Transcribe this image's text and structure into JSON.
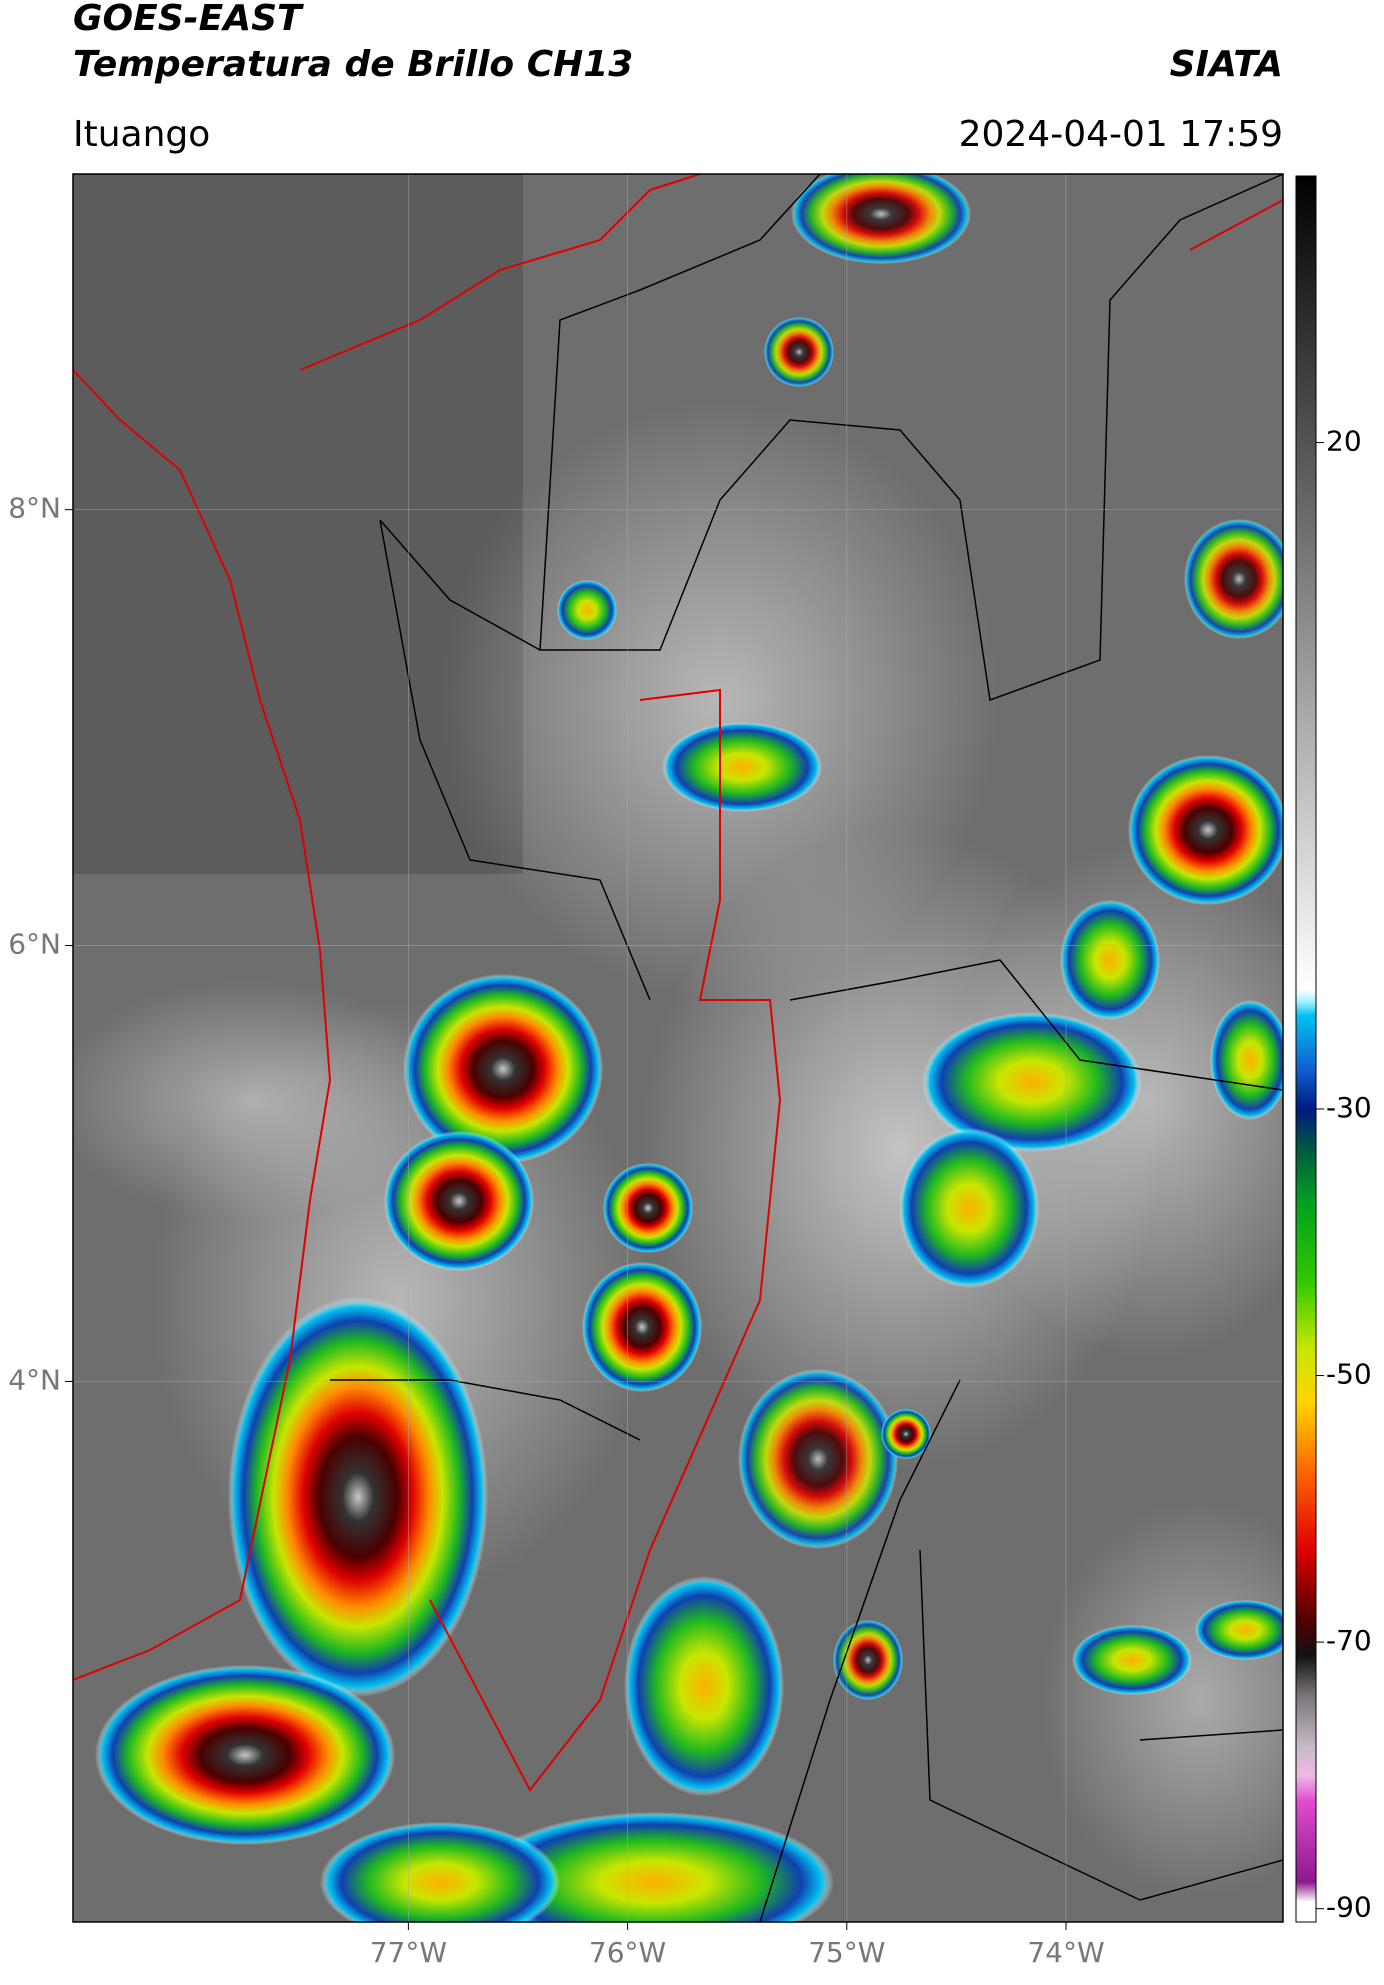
{
  "header": {
    "title": "GOES-EAST",
    "subtitle": "Temperatura de Brillo CH13",
    "source": "SIATA",
    "location": "Ituango",
    "timestamp": "2024-04-01 17:59"
  },
  "map": {
    "lon_range": [
      -78.53,
      -73.01
    ],
    "lat_range": [
      1.52,
      9.54
    ],
    "lat_ticks": [
      {
        "value": 8,
        "label": "8°N"
      },
      {
        "value": 6,
        "label": "6°N"
      },
      {
        "value": 4,
        "label": "4°N"
      }
    ],
    "lon_ticks": [
      {
        "value": -77,
        "label": "77°W"
      },
      {
        "value": -76,
        "label": "76°W"
      },
      {
        "value": -75,
        "label": "75°W"
      },
      {
        "value": -74,
        "label": "74°W"
      }
    ],
    "grid": true
  },
  "colorbar": {
    "range": [
      -91,
      40
    ],
    "ticks": [
      20,
      -30,
      -50,
      -70,
      -90
    ],
    "colormap": [
      {
        "value": -91,
        "color": "#ffffff"
      },
      {
        "value": -89.5,
        "color": "#ffffff"
      },
      {
        "value": -88,
        "color": "#8b1a8b"
      },
      {
        "value": -82,
        "color": "#e04ad0"
      },
      {
        "value": -80,
        "color": "#f0b8e4"
      },
      {
        "value": -78,
        "color": "#c8bcc8"
      },
      {
        "value": -74,
        "color": "#7a747a"
      },
      {
        "value": -71,
        "color": "#111111"
      },
      {
        "value": -68,
        "color": "#5a0000"
      },
      {
        "value": -63,
        "color": "#e00000"
      },
      {
        "value": -57,
        "color": "#ff6a00"
      },
      {
        "value": -52,
        "color": "#ffd400"
      },
      {
        "value": -48,
        "color": "#c8e600"
      },
      {
        "value": -43,
        "color": "#32c800"
      },
      {
        "value": -37,
        "color": "#00a020"
      },
      {
        "value": -33,
        "color": "#005840"
      },
      {
        "value": -30,
        "color": "#001a80"
      },
      {
        "value": -27,
        "color": "#1060d0"
      },
      {
        "value": -23,
        "color": "#00c0f0"
      },
      {
        "value": -22,
        "color": "#a0f0ff"
      },
      {
        "value": -21,
        "color": "#ffffff"
      },
      {
        "value": 40,
        "color": "#000000"
      }
    ]
  }
}
